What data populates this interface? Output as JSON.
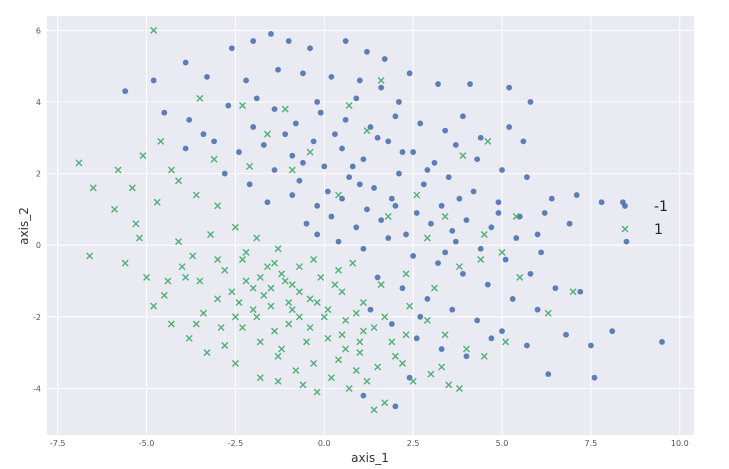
{
  "chart_data": {
    "type": "scatter",
    "title": "",
    "xlabel": "axis_1",
    "ylabel": "axis_2",
    "xlim": [
      -7.8,
      10.4
    ],
    "ylim": [
      -5.3,
      6.4
    ],
    "xticks": [
      -7.5,
      -5.0,
      -2.5,
      0.0,
      2.5,
      5.0,
      7.5,
      10.0
    ],
    "xtick_labels": [
      "-7.5",
      "-5.0",
      "-2.5",
      "0.0",
      "2.5",
      "5.0",
      "7.5",
      "10.0"
    ],
    "yticks": [
      -4,
      -2,
      0,
      2,
      4,
      6
    ],
    "ytick_labels": [
      "-4",
      "-2",
      "0",
      "2",
      "4",
      "6"
    ],
    "grid": true,
    "legend_position": "right",
    "series": [
      {
        "name": "-1",
        "marker": "circle",
        "color": "#4c72b0",
        "points": [
          [
            -2.6,
            5.5
          ],
          [
            -2.0,
            5.7
          ],
          [
            -1.5,
            5.9
          ],
          [
            -1.0,
            5.7
          ],
          [
            -0.4,
            5.5
          ],
          [
            0.6,
            5.7
          ],
          [
            1.2,
            5.4
          ],
          [
            -5.6,
            4.3
          ],
          [
            -4.8,
            4.6
          ],
          [
            -3.9,
            5.1
          ],
          [
            -3.3,
            4.7
          ],
          [
            -2.2,
            4.6
          ],
          [
            -1.3,
            4.9
          ],
          [
            -0.6,
            4.8
          ],
          [
            0.2,
            4.7
          ],
          [
            1.0,
            4.6
          ],
          [
            1.6,
            4.4
          ],
          [
            2.4,
            4.8
          ],
          [
            3.2,
            4.5
          ],
          [
            4.1,
            4.5
          ],
          [
            5.2,
            4.4
          ],
          [
            5.8,
            4.0
          ],
          [
            -4.5,
            3.7
          ],
          [
            -3.8,
            3.5
          ],
          [
            -2.7,
            3.9
          ],
          [
            -2.0,
            3.3
          ],
          [
            -1.4,
            3.8
          ],
          [
            -0.8,
            3.4
          ],
          [
            -0.1,
            3.7
          ],
          [
            0.6,
            3.5
          ],
          [
            1.3,
            3.3
          ],
          [
            2.0,
            3.6
          ],
          [
            2.7,
            3.4
          ],
          [
            3.4,
            3.2
          ],
          [
            3.9,
            3.6
          ],
          [
            4.4,
            3.0
          ],
          [
            5.2,
            3.3
          ],
          [
            -3.9,
            2.7
          ],
          [
            -3.1,
            2.9
          ],
          [
            -2.4,
            2.6
          ],
          [
            -1.7,
            2.8
          ],
          [
            -0.9,
            2.5
          ],
          [
            -0.3,
            2.9
          ],
          [
            0.5,
            2.7
          ],
          [
            1.1,
            2.4
          ],
          [
            1.8,
            2.9
          ],
          [
            2.5,
            2.6
          ],
          [
            3.1,
            2.3
          ],
          [
            3.7,
            2.8
          ],
          [
            4.3,
            2.4
          ],
          [
            5.0,
            2.1
          ],
          [
            5.7,
            1.9
          ],
          [
            6.4,
            1.3
          ],
          [
            7.1,
            1.4
          ],
          [
            7.8,
            1.2
          ],
          [
            8.4,
            1.2
          ],
          [
            -2.8,
            2.0
          ],
          [
            -2.1,
            1.7
          ],
          [
            -1.4,
            2.1
          ],
          [
            -0.7,
            1.8
          ],
          [
            0.0,
            2.2
          ],
          [
            0.7,
            1.9
          ],
          [
            1.4,
            1.6
          ],
          [
            2.1,
            2.0
          ],
          [
            2.8,
            1.7
          ],
          [
            3.5,
            1.9
          ],
          [
            4.2,
            1.5
          ],
          [
            4.9,
            1.2
          ],
          [
            5.5,
            0.8
          ],
          [
            6.2,
            0.9
          ],
          [
            6.9,
            0.6
          ],
          [
            -1.6,
            1.2
          ],
          [
            -0.9,
            1.4
          ],
          [
            -0.2,
            1.1
          ],
          [
            0.5,
            1.3
          ],
          [
            1.2,
            1.0
          ],
          [
            1.9,
            1.3
          ],
          [
            2.6,
            0.9
          ],
          [
            3.3,
            1.1
          ],
          [
            4.0,
            0.7
          ],
          [
            4.7,
            0.5
          ],
          [
            5.4,
            0.2
          ],
          [
            6.1,
            -0.2
          ],
          [
            -0.5,
            0.6
          ],
          [
            0.2,
            0.8
          ],
          [
            0.9,
            0.5
          ],
          [
            1.6,
            0.7
          ],
          [
            2.3,
            0.3
          ],
          [
            3.0,
            0.6
          ],
          [
            3.7,
            0.1
          ],
          [
            4.4,
            -0.1
          ],
          [
            5.1,
            -0.4
          ],
          [
            5.8,
            -0.8
          ],
          [
            6.5,
            -1.2
          ],
          [
            7.2,
            -1.3
          ],
          [
            0.4,
            0.1
          ],
          [
            1.1,
            -0.1
          ],
          [
            1.8,
            0.2
          ],
          [
            2.5,
            -0.3
          ],
          [
            3.2,
            -0.5
          ],
          [
            3.9,
            -0.8
          ],
          [
            4.6,
            -1.1
          ],
          [
            5.3,
            -1.5
          ],
          [
            6.0,
            -1.8
          ],
          [
            6.8,
            -2.5
          ],
          [
            7.5,
            -2.8
          ],
          [
            1.5,
            -0.9
          ],
          [
            2.2,
            -1.2
          ],
          [
            2.9,
            -1.5
          ],
          [
            3.6,
            -1.8
          ],
          [
            4.3,
            -2.1
          ],
          [
            5.0,
            -2.4
          ],
          [
            5.7,
            -2.8
          ],
          [
            1.9,
            -2.2
          ],
          [
            2.6,
            -2.6
          ],
          [
            3.3,
            -2.9
          ],
          [
            4.0,
            -3.1
          ],
          [
            6.3,
            -3.6
          ],
          [
            7.6,
            -3.7
          ],
          [
            8.1,
            -2.4
          ],
          [
            9.5,
            -2.7
          ],
          [
            8.5,
            0.1
          ],
          [
            -0.2,
            4.0
          ],
          [
            0.9,
            4.1
          ],
          [
            2.1,
            4.0
          ],
          [
            -1.1,
            3.1
          ],
          [
            1.5,
            3.0
          ],
          [
            2.9,
            2.1
          ],
          [
            0.1,
            1.5
          ],
          [
            2.0,
            1.1
          ],
          [
            3.4,
            -0.2
          ],
          [
            1.3,
            -1.8
          ],
          [
            2.4,
            -3.7
          ],
          [
            2.0,
            -4.5
          ],
          [
            1.1,
            -4.2
          ],
          [
            4.9,
            0.9
          ],
          [
            3.6,
            0.4
          ],
          [
            -0.6,
            2.3
          ],
          [
            0.8,
            2.2
          ],
          [
            -1.9,
            4.1
          ],
          [
            1.7,
            5.2
          ],
          [
            -3.4,
            3.1
          ],
          [
            5.6,
            2.9
          ],
          [
            6.0,
            0.3
          ],
          [
            2.7,
            -2.0
          ],
          [
            4.7,
            -2.6
          ],
          [
            0.3,
            3.1
          ],
          [
            -0.2,
            0.3
          ],
          [
            1.0,
            1.7
          ],
          [
            2.2,
            2.6
          ],
          [
            3.8,
            1.3
          ]
        ]
      },
      {
        "name": "1",
        "marker": "x",
        "color": "#3daa68",
        "points": [
          [
            -4.8,
            6.0
          ],
          [
            -6.9,
            2.3
          ],
          [
            -6.5,
            1.6
          ],
          [
            -5.1,
            2.5
          ],
          [
            -4.6,
            2.9
          ],
          [
            -3.5,
            4.1
          ],
          [
            -2.3,
            3.9
          ],
          [
            -1.1,
            3.8
          ],
          [
            0.7,
            3.9
          ],
          [
            1.6,
            4.6
          ],
          [
            -6.6,
            -0.3
          ],
          [
            -5.9,
            1.0
          ],
          [
            -5.3,
            0.6
          ],
          [
            -4.7,
            1.2
          ],
          [
            -4.1,
            1.8
          ],
          [
            -3.6,
            1.4
          ],
          [
            -3.0,
            1.1
          ],
          [
            -2.5,
            0.5
          ],
          [
            -1.9,
            0.2
          ],
          [
            -1.3,
            -0.1
          ],
          [
            -0.7,
            -0.6
          ],
          [
            -0.1,
            -0.9
          ],
          [
            0.5,
            -1.3
          ],
          [
            1.1,
            -1.6
          ],
          [
            1.7,
            -2.0
          ],
          [
            2.3,
            -2.5
          ],
          [
            -5.6,
            -0.5
          ],
          [
            -5.0,
            -0.9
          ],
          [
            -4.5,
            -1.4
          ],
          [
            -4.0,
            -0.6
          ],
          [
            -3.5,
            -1.0
          ],
          [
            -3.0,
            -1.5
          ],
          [
            -2.5,
            -2.0
          ],
          [
            -2.0,
            -1.2
          ],
          [
            -1.5,
            -1.7
          ],
          [
            -1.0,
            -2.2
          ],
          [
            -0.5,
            -2.7
          ],
          [
            0.0,
            -2.0
          ],
          [
            0.5,
            -2.5
          ],
          [
            1.0,
            -3.0
          ],
          [
            1.5,
            -3.4
          ],
          [
            2.0,
            -3.1
          ],
          [
            2.5,
            -3.8
          ],
          [
            3.0,
            -3.6
          ],
          [
            3.5,
            -3.9
          ],
          [
            -4.8,
            -1.7
          ],
          [
            -4.3,
            -2.2
          ],
          [
            -3.8,
            -2.6
          ],
          [
            -3.3,
            -3.0
          ],
          [
            -2.8,
            -2.8
          ],
          [
            -2.3,
            -2.3
          ],
          [
            -1.8,
            -2.7
          ],
          [
            -1.3,
            -3.1
          ],
          [
            -0.8,
            -3.5
          ],
          [
            -0.3,
            -3.3
          ],
          [
            0.2,
            -3.7
          ],
          [
            0.7,
            -4.0
          ],
          [
            1.2,
            -3.8
          ],
          [
            1.7,
            -4.4
          ],
          [
            -4.1,
            0.1
          ],
          [
            -3.7,
            -0.3
          ],
          [
            -3.2,
            0.3
          ],
          [
            -2.8,
            -0.7
          ],
          [
            -2.3,
            -0.4
          ],
          [
            -1.8,
            -0.9
          ],
          [
            -1.4,
            -0.5
          ],
          [
            -0.9,
            -1.1
          ],
          [
            -0.4,
            -1.5
          ],
          [
            0.1,
            -1.8
          ],
          [
            0.6,
            -2.1
          ],
          [
            -3.4,
            -1.9
          ],
          [
            -2.9,
            -2.3
          ],
          [
            -2.4,
            -1.6
          ],
          [
            -1.9,
            -2.0
          ],
          [
            -1.4,
            -2.4
          ],
          [
            -0.9,
            -1.8
          ],
          [
            -0.4,
            -2.3
          ],
          [
            0.1,
            -2.6
          ],
          [
            0.6,
            -2.9
          ],
          [
            1.1,
            -2.4
          ],
          [
            -2.2,
            -1.0
          ],
          [
            -1.7,
            -1.4
          ],
          [
            -1.2,
            -0.8
          ],
          [
            -0.7,
            -1.3
          ],
          [
            -0.2,
            -1.6
          ],
          [
            0.3,
            -1.1
          ],
          [
            -1.5,
            -1.2
          ],
          [
            -1.0,
            -1.6
          ],
          [
            -2.6,
            -1.3
          ],
          [
            -2.0,
            -1.8
          ],
          [
            -1.6,
            -0.6
          ],
          [
            -1.1,
            -1.0
          ],
          [
            0.4,
            -0.7
          ],
          [
            0.9,
            -1.9
          ],
          [
            1.4,
            -2.3
          ],
          [
            1.9,
            -2.7
          ],
          [
            2.4,
            -1.7
          ],
          [
            2.9,
            -2.1
          ],
          [
            3.4,
            -2.5
          ],
          [
            4.0,
            -2.9
          ],
          [
            4.5,
            -3.1
          ],
          [
            5.1,
            -2.7
          ],
          [
            2.3,
            -0.8
          ],
          [
            3.1,
            -1.2
          ],
          [
            3.8,
            -0.6
          ],
          [
            4.4,
            -0.4
          ],
          [
            5.0,
            -0.2
          ],
          [
            5.5,
            -0.9
          ],
          [
            6.3,
            -1.9
          ],
          [
            7.0,
            -1.3
          ],
          [
            3.4,
            0.8
          ],
          [
            4.5,
            0.3
          ],
          [
            5.4,
            0.8
          ],
          [
            2.6,
            1.4
          ],
          [
            3.9,
            2.5
          ],
          [
            4.6,
            2.9
          ],
          [
            1.2,
            3.2
          ],
          [
            -0.4,
            2.6
          ],
          [
            -1.6,
            3.1
          ],
          [
            -3.1,
            2.4
          ],
          [
            -4.3,
            2.1
          ],
          [
            -5.4,
            1.6
          ],
          [
            -2.1,
            2.2
          ],
          [
            -0.9,
            2.1
          ],
          [
            0.4,
            1.4
          ],
          [
            1.8,
            0.8
          ],
          [
            2.9,
            0.2
          ],
          [
            -1.3,
            -3.8
          ],
          [
            -0.2,
            -4.1
          ],
          [
            0.9,
            -3.5
          ],
          [
            2.2,
            -3.3
          ],
          [
            3.3,
            -3.4
          ],
          [
            -2.5,
            -3.3
          ],
          [
            -3.6,
            -2.2
          ],
          [
            -4.4,
            -1.0
          ],
          [
            -5.2,
            0.2
          ],
          [
            -5.8,
            2.1
          ],
          [
            -1.8,
            -3.7
          ],
          [
            -0.6,
            -3.9
          ],
          [
            1.4,
            -4.6
          ],
          [
            3.8,
            -4.0
          ],
          [
            -3.9,
            -0.9
          ],
          [
            -2.2,
            -0.2
          ],
          [
            -0.3,
            -0.4
          ],
          [
            0.8,
            -0.5
          ],
          [
            1.6,
            -1.1
          ],
          [
            -3.0,
            -0.4
          ],
          [
            -1.2,
            -2.9
          ],
          [
            -0.7,
            -2.0
          ],
          [
            0.4,
            -3.2
          ],
          [
            1.0,
            -2.7
          ]
        ]
      }
    ]
  }
}
